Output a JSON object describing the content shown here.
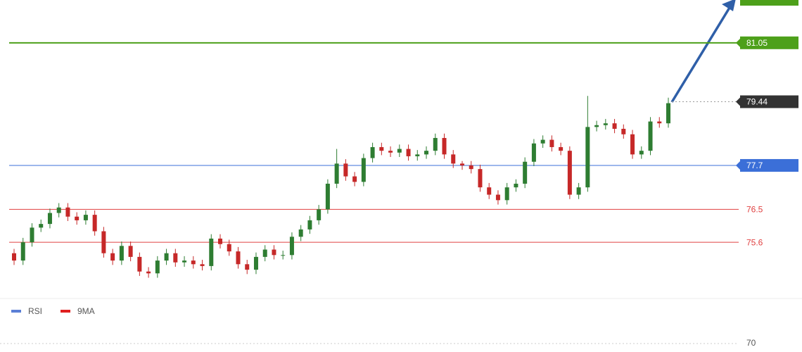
{
  "chart_data": {
    "type": "candlestick",
    "open": [
      75.3,
      75.1,
      75.6,
      76.0,
      76.1,
      76.4,
      76.55,
      76.3,
      76.2,
      76.35,
      75.9,
      75.3,
      75.1,
      75.5,
      75.2,
      74.8,
      74.75,
      75.1,
      75.3,
      75.05,
      75.1,
      75.0,
      74.95,
      75.7,
      75.55,
      75.35,
      75.0,
      74.85,
      75.2,
      75.4,
      75.25,
      75.25,
      75.75,
      75.95,
      76.2,
      76.5,
      77.2,
      77.75,
      77.4,
      77.25,
      77.9,
      78.2,
      78.1,
      78.05,
      78.15,
      77.95,
      78.0,
      78.1,
      78.45,
      78.0,
      77.75,
      77.7,
      77.6,
      77.1,
      76.9,
      76.75,
      77.1,
      77.2,
      77.8,
      78.3,
      78.4,
      78.2,
      78.1,
      76.9,
      77.1,
      78.75,
      78.8,
      78.85,
      78.7,
      78.55,
      78.0,
      78.1,
      78.9,
      78.85
    ],
    "high": [
      75.42,
      75.72,
      76.12,
      76.22,
      76.52,
      76.67,
      76.67,
      76.42,
      76.47,
      76.47,
      76.02,
      75.42,
      75.62,
      75.62,
      75.32,
      74.92,
      75.22,
      75.42,
      75.42,
      75.22,
      75.22,
      75.12,
      75.82,
      75.82,
      75.67,
      75.47,
      75.12,
      75.32,
      75.52,
      75.52,
      75.37,
      75.87,
      76.07,
      76.32,
      76.62,
      77.32,
      78.15,
      77.87,
      77.52,
      78.02,
      78.32,
      78.32,
      78.22,
      78.27,
      78.27,
      78.12,
      78.22,
      78.57,
      78.57,
      78.12,
      77.82,
      77.82,
      77.72,
      77.22,
      77.02,
      77.22,
      77.32,
      77.92,
      78.42,
      78.52,
      78.52,
      78.32,
      78.22,
      77.22,
      79.6,
      78.92,
      78.97,
      78.97,
      78.82,
      78.67,
      78.22,
      79.02,
      79.02,
      79.55
    ],
    "low": [
      74.98,
      74.98,
      75.48,
      75.88,
      75.98,
      76.28,
      76.18,
      76.08,
      76.08,
      75.78,
      75.18,
      74.98,
      74.98,
      75.08,
      74.68,
      74.63,
      74.63,
      74.98,
      74.93,
      74.93,
      74.88,
      74.83,
      74.83,
      75.43,
      75.23,
      74.88,
      74.73,
      74.73,
      75.08,
      75.13,
      75.13,
      75.13,
      75.63,
      75.83,
      76.08,
      76.38,
      77.08,
      77.28,
      77.13,
      77.13,
      77.78,
      77.98,
      77.93,
      77.93,
      77.83,
      77.83,
      77.88,
      77.98,
      77.88,
      77.63,
      77.58,
      77.48,
      76.98,
      76.78,
      76.63,
      76.63,
      76.98,
      77.08,
      77.68,
      78.18,
      78.08,
      77.98,
      76.78,
      76.78,
      76.98,
      78.63,
      78.68,
      78.58,
      78.43,
      77.88,
      77.88,
      77.98,
      78.73,
      78.73
    ],
    "close": [
      75.1,
      75.6,
      76.0,
      76.1,
      76.4,
      76.55,
      76.3,
      76.2,
      76.35,
      75.9,
      75.3,
      75.1,
      75.5,
      75.2,
      74.8,
      74.75,
      75.1,
      75.3,
      75.05,
      75.1,
      75.0,
      74.95,
      75.7,
      75.55,
      75.35,
      75.0,
      74.85,
      75.2,
      75.4,
      75.25,
      75.25,
      75.75,
      75.95,
      76.2,
      76.5,
      77.2,
      77.75,
      77.4,
      77.25,
      77.9,
      78.2,
      78.1,
      78.05,
      78.15,
      77.95,
      78.0,
      78.1,
      78.45,
      78.0,
      77.75,
      77.7,
      77.6,
      77.1,
      76.9,
      76.75,
      77.1,
      77.2,
      77.8,
      78.3,
      78.4,
      78.2,
      78.1,
      76.9,
      77.1,
      78.75,
      78.8,
      78.85,
      78.7,
      78.55,
      78.0,
      78.1,
      78.9,
      78.85,
      79.4
    ],
    "up_color": "#2e7d32",
    "down_color": "#c62828",
    "ylim": [
      74.14,
      82.22
    ],
    "levels": [
      {
        "value": 81.05,
        "color": "#4da01a",
        "style": "solid",
        "box": true
      },
      {
        "value": 79.44,
        "color": "#333333",
        "style": "dotted",
        "box": true
      },
      {
        "value": 77.7,
        "color": "#3b6fd8",
        "style": "solid",
        "box": true
      },
      {
        "value": 76.5,
        "color": "#e04040",
        "style": "solid",
        "box": false
      },
      {
        "value": 75.6,
        "color": "#e04040",
        "style": "solid",
        "box": false
      }
    ],
    "indicator": {
      "legend": [
        {
          "name": "RSI",
          "color": "#5b7fd6"
        },
        {
          "name": "9MA",
          "color": "#e02020"
        }
      ],
      "ylim": [
        66,
        76
      ],
      "yticks": [
        70
      ]
    }
  }
}
